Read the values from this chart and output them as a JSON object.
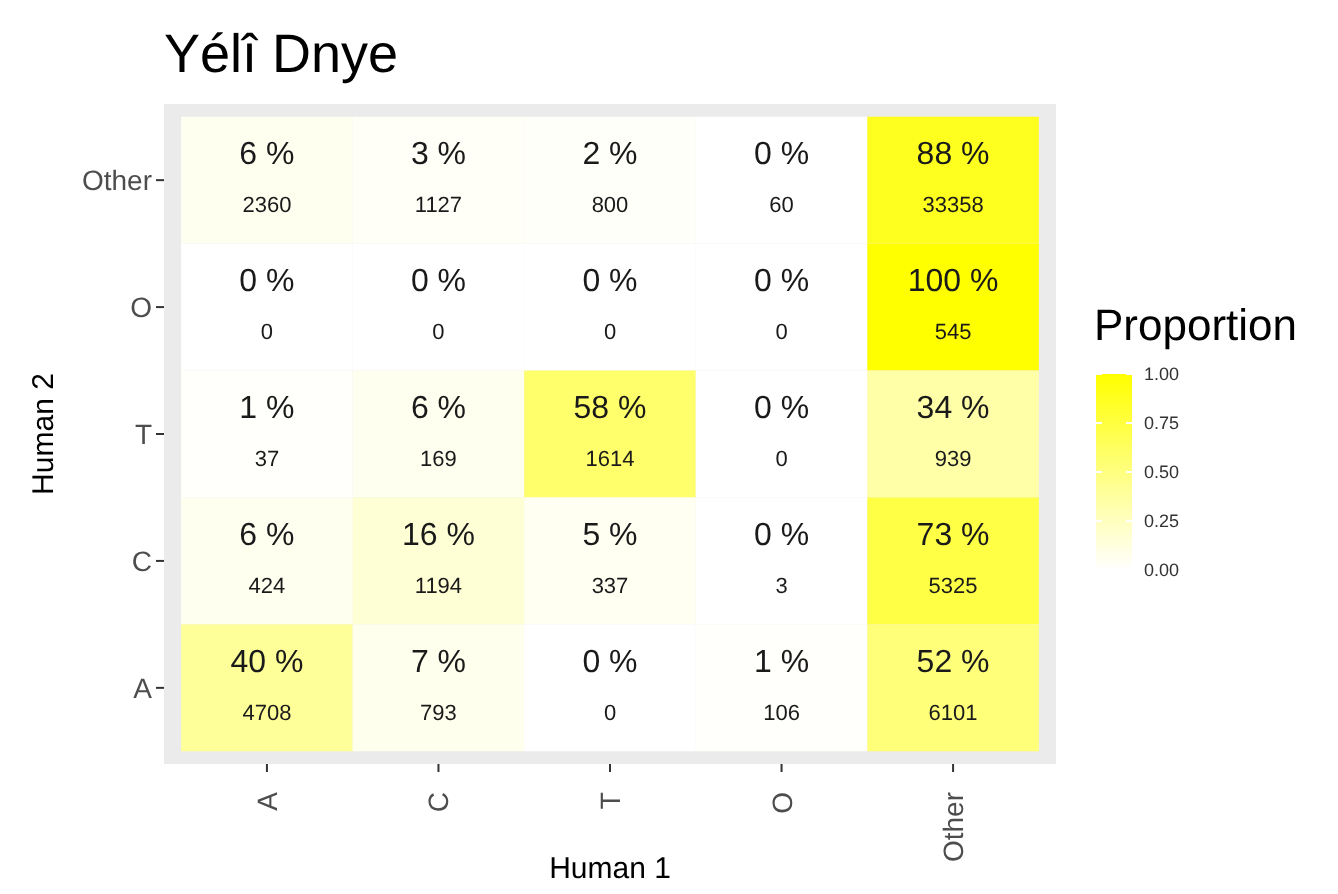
{
  "chart_data": {
    "type": "heatmap",
    "title": "Yélî Dnye",
    "xlabel": "Human 1",
    "ylabel": "Human 2",
    "clabel": "Proportion",
    "categories": [
      "A",
      "C",
      "T",
      "O",
      "Other"
    ],
    "y_categories": [
      "Other",
      "O",
      "T",
      "C",
      "A"
    ],
    "cells": [
      [
        0.06,
        0.03,
        0.02,
        0.0,
        0.88
      ],
      [
        0.0,
        0.0,
        0.0,
        0.0,
        1.0
      ],
      [
        0.01,
        0.06,
        0.58,
        0.0,
        0.34
      ],
      [
        0.06,
        0.16,
        0.05,
        0.0,
        0.73
      ],
      [
        0.4,
        0.07,
        0.0,
        0.01,
        0.52
      ]
    ],
    "cell_labels": [
      [
        "6 %\n2360",
        "3 %\n1127",
        "2 %\n800",
        "0 %\n60",
        "88 %\n33358"
      ],
      [
        "0 %\n0",
        "0 %\n0",
        "0 %\n0",
        "0 %\n0",
        "100 %\n545"
      ],
      [
        "1 %\n37",
        "6 %\n169",
        "58 %\n1614",
        "0 %\n0",
        "34 %\n939"
      ],
      [
        "6 %\n424",
        "16 %\n1194",
        "5 %\n337",
        "0 %\n3",
        "73 %\n5325"
      ],
      [
        "40 %\n4708",
        "7 %\n793",
        "0 %\n0",
        "1 %\n106",
        "52 %\n6101"
      ]
    ],
    "clim": [
      0,
      1
    ],
    "cticks": [
      {
        "value": 0,
        "label": "0.00"
      },
      {
        "value": 0.25,
        "label": "0.25"
      },
      {
        "value": 0.5,
        "label": "0.50"
      },
      {
        "value": 0.75,
        "label": "0.75"
      },
      {
        "value": 1,
        "label": "1.00"
      }
    ]
  }
}
